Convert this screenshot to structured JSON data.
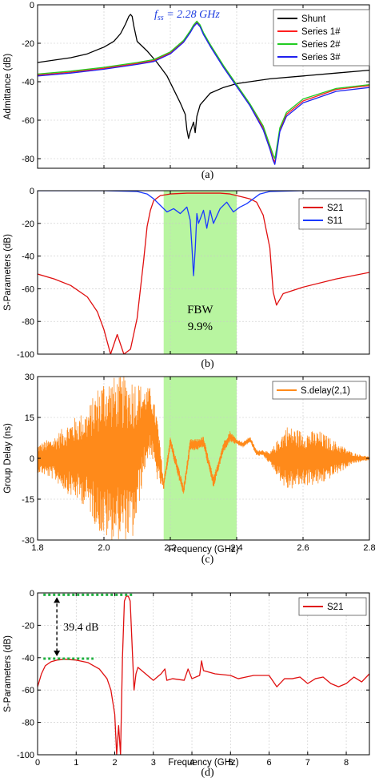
{
  "chart_data": [
    {
      "id": "a",
      "type": "line",
      "panel_label": "(a)",
      "annotation": "f_ss = 2.28 GHz",
      "annotation_parts": {
        "f": "f",
        "sub": "ss",
        "rest": " = 2.28 GHz"
      },
      "ylabel": "Admittance (dB)",
      "xlabel": "",
      "xlim": [
        1.8,
        2.8
      ],
      "ylim": [
        -85,
        0
      ],
      "xticks": [
        1.8,
        2.0,
        2.2,
        2.4,
        2.6,
        2.8
      ],
      "yticks": [
        0,
        -20,
        -40,
        -60,
        -80
      ],
      "ytick_labels": [
        "0",
        "-20",
        "-40",
        "-60",
        "-80"
      ],
      "grid": true,
      "legend_position": "top-right",
      "series": [
        {
          "name": "Shunt",
          "color": "#000000",
          "x": [
            1.8,
            1.9,
            1.95,
            2.0,
            2.03,
            2.05,
            2.065,
            2.075,
            2.08,
            2.085,
            2.09,
            2.1,
            2.13,
            2.16,
            2.19,
            2.21,
            2.23,
            2.245,
            2.25,
            2.255,
            2.26,
            2.27,
            2.275,
            2.28,
            2.29,
            2.32,
            2.36,
            2.4,
            2.5,
            2.6,
            2.7,
            2.8
          ],
          "y": [
            -30,
            -27.5,
            -25.5,
            -22,
            -19,
            -15,
            -10,
            -6,
            -5,
            -6,
            -11,
            -19,
            -24,
            -30,
            -37,
            -44,
            -51,
            -57,
            -65,
            -69.5,
            -66,
            -61,
            -66.5,
            -58,
            -52,
            -46,
            -43,
            -41,
            -38.5,
            -37,
            -35.5,
            -34
          ]
        },
        {
          "name": "Series 1#",
          "color": "#ff2020",
          "x": [
            1.8,
            1.9,
            2.0,
            2.1,
            2.15,
            2.2,
            2.24,
            2.26,
            2.27,
            2.28,
            2.29,
            2.3,
            2.32,
            2.36,
            2.4,
            2.44,
            2.48,
            2.5,
            2.51,
            2.515,
            2.52,
            2.53,
            2.55,
            2.6,
            2.7,
            2.8
          ],
          "y": [
            -36.5,
            -35,
            -33,
            -30.5,
            -29,
            -25,
            -19,
            -14,
            -11,
            -9,
            -11,
            -15,
            -21,
            -32,
            -42,
            -52,
            -64,
            -74,
            -80,
            -82,
            -77,
            -65,
            -57,
            -50,
            -44,
            -42
          ]
        },
        {
          "name": "Series 2#",
          "color": "#22cc22",
          "x": [
            1.8,
            1.9,
            2.0,
            2.1,
            2.15,
            2.2,
            2.24,
            2.26,
            2.27,
            2.28,
            2.29,
            2.3,
            2.32,
            2.36,
            2.4,
            2.44,
            2.48,
            2.5,
            2.51,
            2.515,
            2.52,
            2.53,
            2.55,
            2.6,
            2.7,
            2.8
          ],
          "y": [
            -36,
            -34.5,
            -32.5,
            -30,
            -28.5,
            -24.5,
            -18.5,
            -13.5,
            -10.5,
            -8.5,
            -10.5,
            -14.5,
            -20.5,
            -31.5,
            -41.5,
            -51.5,
            -63,
            -73,
            -78,
            -80,
            -75,
            -64,
            -56,
            -49,
            -43.5,
            -41.5
          ]
        },
        {
          "name": "Series 3#",
          "color": "#2020ee",
          "x": [
            1.8,
            1.9,
            2.0,
            2.1,
            2.15,
            2.2,
            2.24,
            2.26,
            2.27,
            2.28,
            2.29,
            2.3,
            2.32,
            2.36,
            2.4,
            2.44,
            2.48,
            2.5,
            2.51,
            2.515,
            2.52,
            2.53,
            2.55,
            2.6,
            2.7,
            2.8
          ],
          "y": [
            -37,
            -35.5,
            -33.5,
            -31,
            -29.5,
            -25.5,
            -19.5,
            -14.5,
            -11.5,
            -9.5,
            -11.5,
            -15.5,
            -21.5,
            -32.5,
            -42.5,
            -52.5,
            -65,
            -75,
            -81,
            -83,
            -78,
            -66,
            -58,
            -51,
            -45,
            -43
          ]
        }
      ]
    },
    {
      "id": "b",
      "type": "line",
      "panel_label": "(b)",
      "annotation": "FBW",
      "annotation2": "9.9%",
      "ylabel": "S-Parameters (dB)",
      "xlabel": "",
      "xlim": [
        1.8,
        2.8
      ],
      "ylim": [
        -100,
        0
      ],
      "xticks": [
        1.8,
        2.0,
        2.2,
        2.4,
        2.6,
        2.8
      ],
      "yticks": [
        0,
        -20,
        -40,
        -60,
        -80,
        -100
      ],
      "ytick_labels": [
        "0",
        "-20",
        "-40",
        "-60",
        "-80",
        "-100"
      ],
      "grid": true,
      "legend_position": "top-right",
      "band": [
        2.18,
        2.4
      ],
      "band_color": "#b8f5a0",
      "series": [
        {
          "name": "S21",
          "color": "#e01010",
          "x": [
            1.8,
            1.85,
            1.9,
            1.95,
            1.98,
            2.0,
            2.02,
            2.04,
            2.06,
            2.08,
            2.1,
            2.12,
            2.13,
            2.14,
            2.15,
            2.17,
            2.2,
            2.25,
            2.3,
            2.35,
            2.38,
            2.4,
            2.42,
            2.44,
            2.46,
            2.48,
            2.5,
            2.51,
            2.52,
            2.54,
            2.6,
            2.7,
            2.8
          ],
          "y": [
            -51,
            -54,
            -58,
            -65,
            -74,
            -85,
            -100,
            -88,
            -100,
            -97,
            -78,
            -42,
            -22,
            -12,
            -6,
            -3,
            -2,
            -1.5,
            -1.5,
            -1.5,
            -2,
            -3,
            -4,
            -5,
            -7,
            -15,
            -35,
            -62,
            -70,
            -63,
            -59,
            -54,
            -50
          ]
        },
        {
          "name": "S11",
          "color": "#1a3aff",
          "x": [
            1.8,
            1.9,
            2.0,
            2.1,
            2.13,
            2.15,
            2.17,
            2.19,
            2.21,
            2.23,
            2.25,
            2.26,
            2.265,
            2.27,
            2.275,
            2.28,
            2.285,
            2.3,
            2.31,
            2.32,
            2.33,
            2.35,
            2.37,
            2.39,
            2.41,
            2.43,
            2.45,
            2.47,
            2.5,
            2.6,
            2.8
          ],
          "y": [
            0,
            0,
            0,
            -0.5,
            -2,
            -5,
            -9,
            -13,
            -11,
            -14,
            -10,
            -18,
            -34,
            -52,
            -36,
            -14,
            -20,
            -12,
            -23,
            -12,
            -20,
            -11,
            -7,
            -13,
            -10,
            -8,
            -5,
            -2,
            -0.5,
            0,
            0
          ]
        }
      ]
    },
    {
      "id": "c",
      "type": "line",
      "panel_label": "(c)",
      "ylabel": "Group Delay (ns)",
      "xlabel": "Frequency (GHz)",
      "xlim": [
        1.8,
        2.8
      ],
      "ylim": [
        -30,
        30
      ],
      "xticks": [
        1.8,
        2.0,
        2.2,
        2.4,
        2.6,
        2.8
      ],
      "xtick_labels": [
        "1.8",
        "2.0",
        "2.2",
        "2.4",
        "2.6",
        "2.8"
      ],
      "yticks": [
        30,
        15,
        0,
        -15,
        -30
      ],
      "ytick_labels": [
        "30",
        "15",
        "0",
        "-15",
        "-30"
      ],
      "grid": true,
      "legend_position": "top-right",
      "band": [
        2.18,
        2.4
      ],
      "band_color": "#b8f5a0",
      "series": [
        {
          "name": "S.delay(2,1)",
          "color": "#ff8a1a",
          "x": [
            1.8,
            1.85,
            1.9,
            1.95,
            1.98,
            2.0,
            2.03,
            2.06,
            2.09,
            2.12,
            2.14,
            2.16,
            2.18,
            2.2,
            2.22,
            2.24,
            2.26,
            2.28,
            2.3,
            2.33,
            2.36,
            2.38,
            2.4,
            2.42,
            2.44,
            2.46,
            2.48,
            2.5,
            2.55,
            2.6,
            2.65,
            2.7,
            2.75,
            2.8
          ],
          "y": [
            0,
            0,
            0,
            0,
            0,
            0,
            0,
            0,
            0,
            10,
            14,
            4,
            -10,
            6,
            -3,
            -12,
            5,
            5,
            6,
            -9,
            4,
            8,
            6,
            5,
            7,
            2,
            2,
            0,
            0,
            0,
            0,
            0,
            0,
            0
          ],
          "noise_amp": [
            5,
            8,
            14,
            18,
            26,
            30,
            30,
            30,
            30,
            16,
            12,
            12,
            2,
            2,
            2,
            2,
            2,
            2,
            2,
            2,
            2,
            2,
            1,
            1,
            1,
            1,
            1,
            2,
            12,
            10,
            10,
            6,
            2,
            0.5
          ]
        }
      ]
    },
    {
      "id": "d",
      "type": "line",
      "panel_label": "(d)",
      "annotation": "39.4 dB",
      "ylabel": "S-Parameters (dB)",
      "xlabel": "Frequency (GHz)",
      "xlim": [
        0,
        8.6
      ],
      "ylim": [
        -100,
        0
      ],
      "xticks": [
        0,
        1,
        2,
        3,
        4,
        5,
        6,
        7,
        8
      ],
      "xtick_labels": [
        "0",
        "1",
        "2",
        "3",
        "4",
        "5",
        "6",
        "7",
        "8"
      ],
      "yticks": [
        0,
        -20,
        -40,
        -60,
        -80,
        -100
      ],
      "ytick_labels": [
        "0",
        "-20",
        "-40",
        "-60",
        "-80",
        "-100"
      ],
      "grid": true,
      "legend_position": "top-right",
      "levels": [
        -1.2,
        -40.6
      ],
      "series": [
        {
          "name": "S21",
          "color": "#e01010",
          "x": [
            0,
            0.1,
            0.2,
            0.35,
            0.5,
            0.7,
            1.0,
            1.3,
            1.6,
            1.8,
            1.9,
            2.0,
            2.05,
            2.1,
            2.15,
            2.2,
            2.25,
            2.3,
            2.35,
            2.4,
            2.5,
            2.55,
            2.6,
            2.8,
            3.0,
            3.2,
            3.3,
            3.35,
            3.5,
            3.8,
            3.9,
            4.0,
            4.2,
            4.25,
            4.3,
            4.6,
            5.0,
            5.2,
            5.4,
            5.6,
            5.8,
            6.0,
            6.2,
            6.4,
            6.6,
            6.8,
            7.0,
            7.2,
            7.4,
            7.6,
            7.8,
            8.0,
            8.2,
            8.4,
            8.6
          ],
          "y": [
            -58,
            -50,
            -45,
            -42.5,
            -41.5,
            -41,
            -41.5,
            -43,
            -47,
            -53,
            -60,
            -75,
            -100,
            -82,
            -100,
            -40,
            -5,
            -2,
            -2,
            -5,
            -60,
            -50,
            -46,
            -50,
            -54,
            -50,
            -47,
            -54,
            -53,
            -54,
            -47,
            -53,
            -51,
            -42,
            -48,
            -50,
            -51,
            -53,
            -52,
            -51,
            -51,
            -51,
            -58,
            -53,
            -53,
            -52,
            -56,
            -53,
            -52,
            -56,
            -58,
            -56,
            -52,
            -55,
            -50
          ]
        }
      ]
    }
  ]
}
